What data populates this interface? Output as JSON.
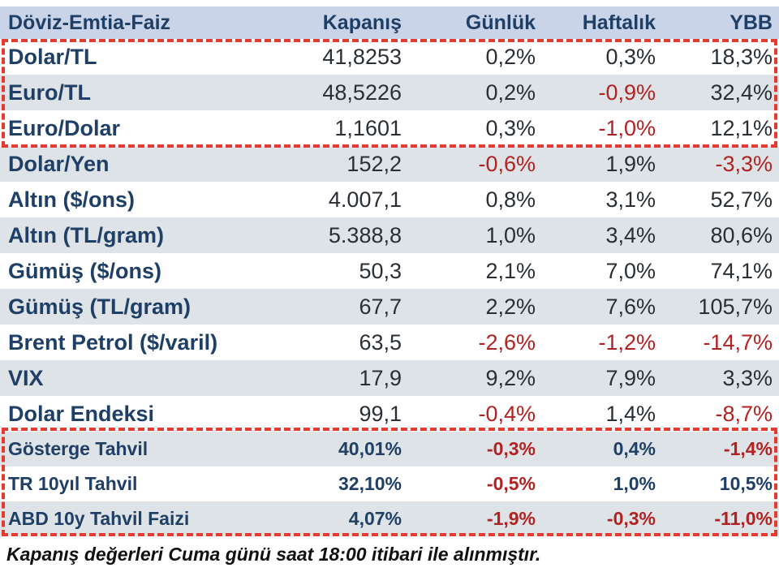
{
  "header": {
    "name": "Döviz-Emtia-Faiz",
    "kapanis": "Kapanış",
    "gunluk": "Günlük",
    "haftalik": "Haftalık",
    "ybb": "YBB"
  },
  "rows": [
    {
      "name": "Dolar/TL",
      "kapanis": "41,8253",
      "gunluk": "0,2%",
      "haftalik": "0,3%",
      "ybb": "18,3%"
    },
    {
      "name": "Euro/TL",
      "kapanis": "48,5226",
      "gunluk": "0,2%",
      "haftalik": "-0,9%",
      "ybb": "32,4%"
    },
    {
      "name": "Euro/Dolar",
      "kapanis": "1,1601",
      "gunluk": "0,3%",
      "haftalik": "-1,0%",
      "ybb": "12,1%"
    },
    {
      "name": "Dolar/Yen",
      "kapanis": "152,2",
      "gunluk": "-0,6%",
      "haftalik": "1,9%",
      "ybb": "-3,3%"
    },
    {
      "name": "Altın ($/ons)",
      "kapanis": "4.007,1",
      "gunluk": "0,8%",
      "haftalik": "3,1%",
      "ybb": "52,7%"
    },
    {
      "name": "Altın (TL/gram)",
      "kapanis": "5.388,8",
      "gunluk": "1,0%",
      "haftalik": "3,4%",
      "ybb": "80,6%"
    },
    {
      "name": "Gümüş ($/ons)",
      "kapanis": "50,3",
      "gunluk": "2,1%",
      "haftalik": "7,0%",
      "ybb": "74,1%"
    },
    {
      "name": "Gümüş (TL/gram)",
      "kapanis": "67,7",
      "gunluk": "2,2%",
      "haftalik": "7,6%",
      "ybb": "105,7%"
    },
    {
      "name": "Brent Petrol ($/varil)",
      "kapanis": "63,5",
      "gunluk": "-2,6%",
      "haftalik": "-1,2%",
      "ybb": "-14,7%"
    },
    {
      "name": "VIX",
      "kapanis": "17,9",
      "gunluk": "9,2%",
      "haftalik": "7,9%",
      "ybb": "3,3%"
    },
    {
      "name": "Dolar Endeksi",
      "kapanis": "99,1",
      "gunluk": "-0,4%",
      "haftalik": "1,4%",
      "ybb": "-8,7%"
    }
  ],
  "bonds": [
    {
      "name": "Gösterge Tahvil",
      "kapanis": "40,01%",
      "gunluk": "-0,3%",
      "haftalik": "0,4%",
      "ybb": "-1,4%"
    },
    {
      "name": "TR 10yıl Tahvil",
      "kapanis": "32,10%",
      "gunluk": "-0,5%",
      "haftalik": "1,0%",
      "ybb": "10,5%"
    },
    {
      "name": "ABD 10y Tahvil Faizi",
      "kapanis": "4,07%",
      "gunluk": "-1,9%",
      "haftalik": "-0,3%",
      "ybb": "-11,0%"
    }
  ],
  "footnote": "Kapanış değerleri Cuma günü saat 18:00 itibari ile alınmıştır.",
  "colors": {
    "negative": "#b22222",
    "header_bg": "#c9d4e8",
    "label": "#1f3f66",
    "highlight_dash": "#e53a2f"
  }
}
